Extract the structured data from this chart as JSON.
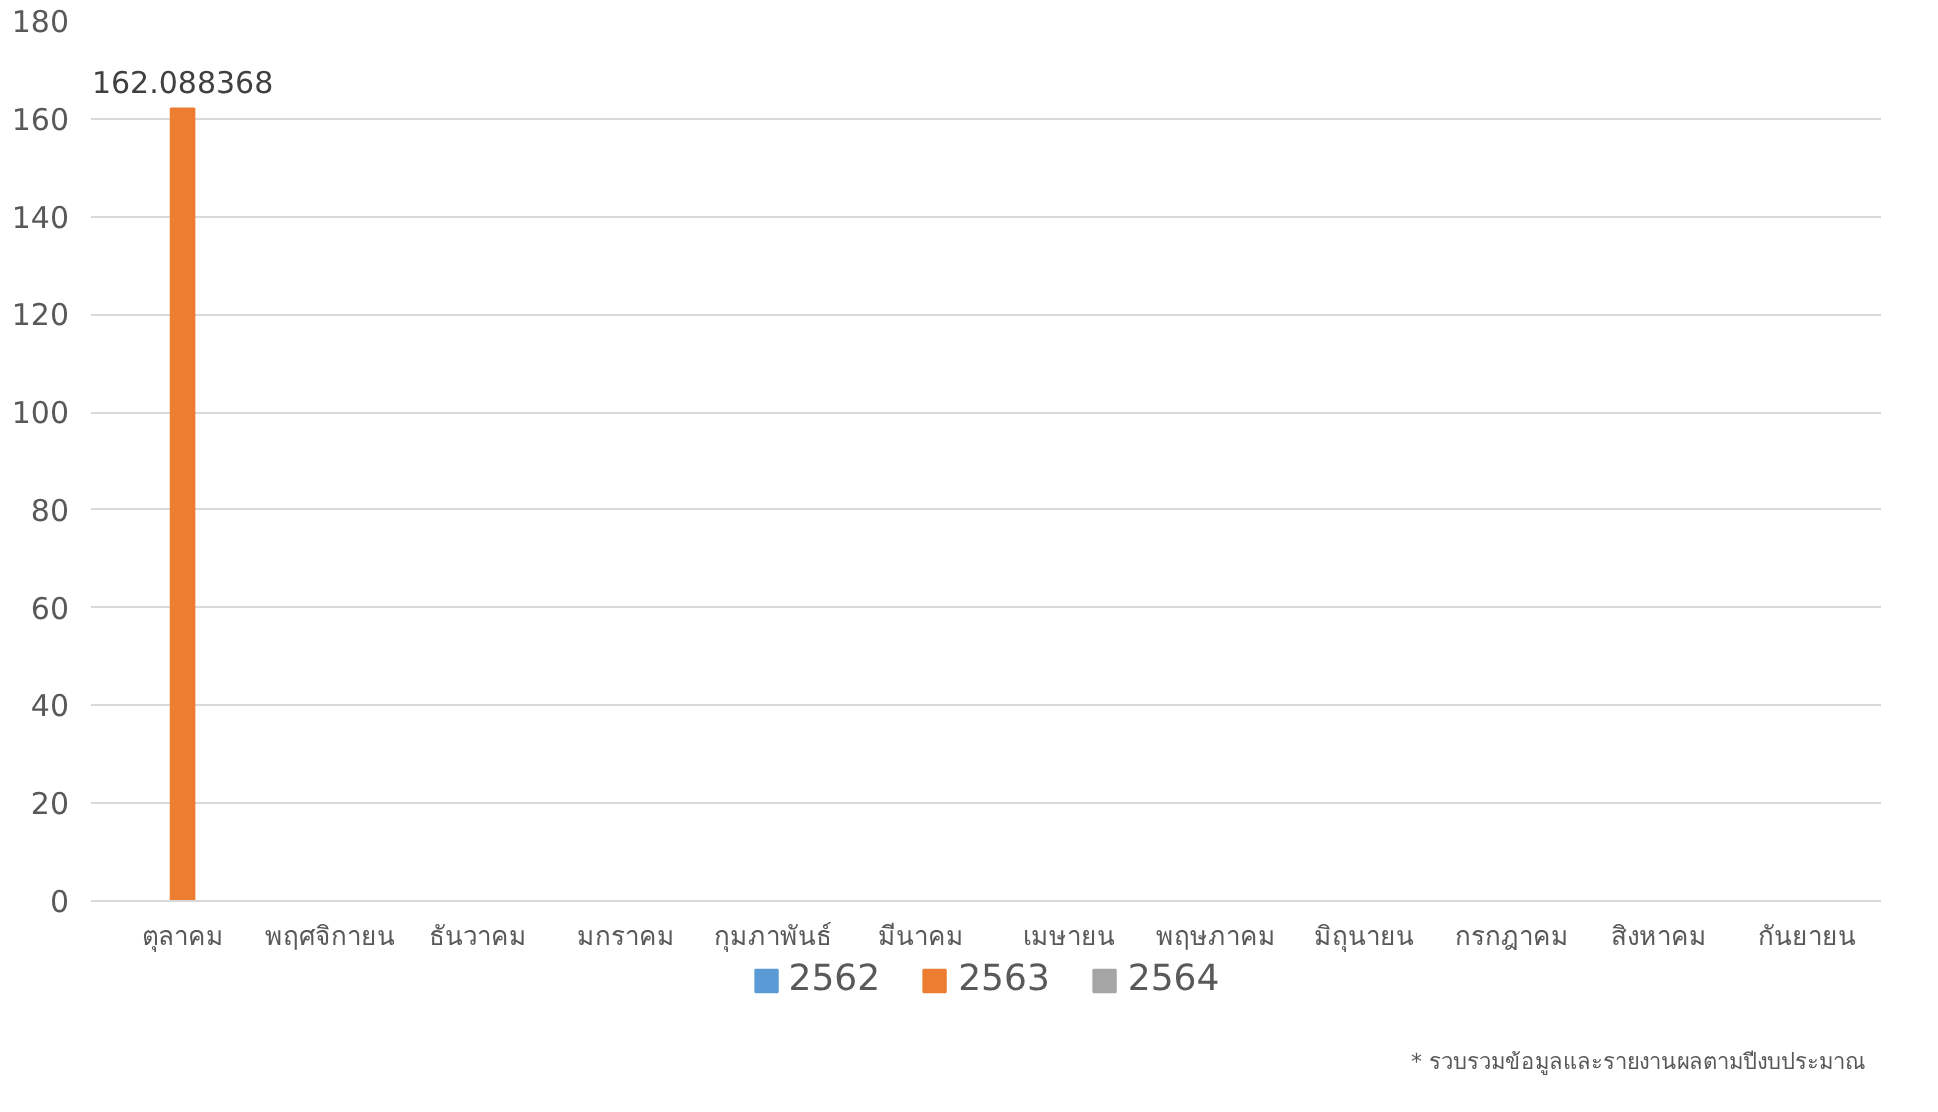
{
  "chart_data": {
    "type": "bar",
    "categories": [
      "ตุลาคม",
      "พฤศจิกายน",
      "ธันวาคม",
      "มกราคม",
      "กุมภาพันธ์",
      "มีนาคม",
      "เมษายน",
      "พฤษภาคม",
      "มิถุนายน",
      "กรกฎาคม",
      "สิงหาคม",
      "กันยายน"
    ],
    "series": [
      {
        "name": "2562",
        "color": "#5b9bd5",
        "values": [
          null,
          null,
          null,
          null,
          null,
          null,
          null,
          null,
          null,
          null,
          null,
          null
        ]
      },
      {
        "name": "2563",
        "color": "#ed7d31",
        "values": [
          162.088368,
          null,
          null,
          null,
          null,
          null,
          null,
          null,
          null,
          null,
          null,
          null
        ],
        "value_labels": [
          "162.088368",
          null,
          null,
          null,
          null,
          null,
          null,
          null,
          null,
          null,
          null,
          null
        ]
      },
      {
        "name": "2564",
        "color": "#a5a5a5",
        "values": [
          null,
          null,
          null,
          null,
          null,
          null,
          null,
          null,
          null,
          null,
          null,
          null
        ]
      }
    ],
    "ylim": [
      0,
      180
    ],
    "yticks": [
      0,
      20,
      40,
      60,
      80,
      100,
      120,
      140,
      160,
      180
    ],
    "grid": "y",
    "legend": "bottom",
    "annotations": [
      "* รวบรวมข้อมูลและรายงานผลตามปีงบประมาณ"
    ]
  }
}
